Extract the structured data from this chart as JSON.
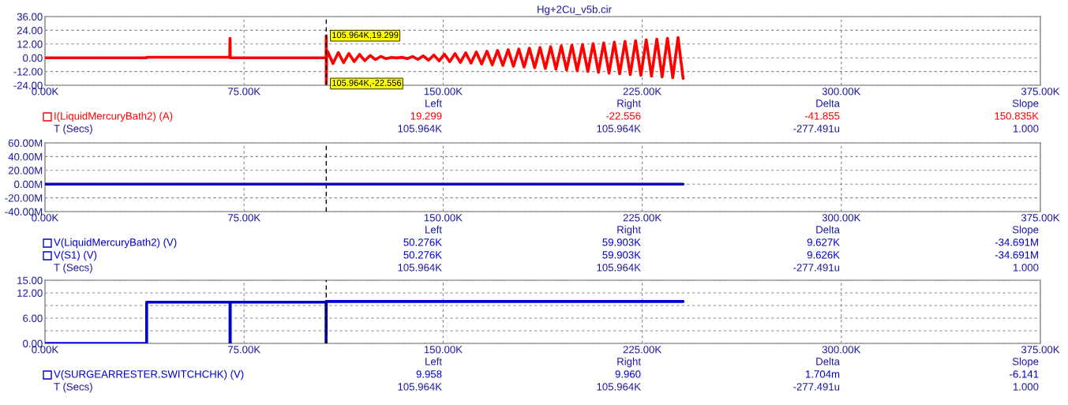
{
  "chart_data": [
    {
      "type": "line",
      "title": "Hg+2Cu_v5b.cir",
      "grid": true,
      "legend": "bottom left",
      "xlim": [
        0,
        375000
      ],
      "xticks": [
        {
          "value": 0,
          "label": "0.00K"
        },
        {
          "value": 75000,
          "label": "75.00K"
        },
        {
          "value": 150000,
          "label": "150.00K"
        },
        {
          "value": 225000,
          "label": "225.00K"
        },
        {
          "value": 300000,
          "label": "300.00K"
        },
        {
          "value": 375000,
          "label": "375.00K"
        }
      ],
      "ylim": [
        -24,
        36
      ],
      "yticks": [
        {
          "value": -24,
          "label": "-24.00"
        },
        {
          "value": -12,
          "label": "-12.00"
        },
        {
          "value": 0,
          "label": "0.00"
        },
        {
          "value": 12,
          "label": "12.00"
        },
        {
          "value": 24,
          "label": "24.00"
        },
        {
          "value": 36,
          "label": "36.00"
        }
      ],
      "ref_lines": [
        {
          "axis": "x",
          "value": 105964,
          "color": "#000000",
          "line_style": "dashed"
        }
      ],
      "series": [
        {
          "name": "I(LiquidMercuryBath2) (A)",
          "color": "#ff0000",
          "x": [
            0,
            38300,
            38300,
            69600,
            69700,
            69800,
            105900,
            105964,
            105964,
            106100,
            106500,
            108500,
            110500,
            112500,
            114500,
            116500,
            118500,
            120500,
            122500,
            124500,
            126500,
            128500,
            130500,
            132500,
            134500,
            136500,
            138500,
            140500,
            142500,
            144500,
            146500,
            148500,
            150500,
            152500,
            154500,
            156500,
            158500,
            160500,
            162500,
            164500,
            166500,
            168500,
            170500,
            172500,
            174500,
            176500,
            178500,
            180500,
            182500,
            184500,
            186500,
            188500,
            190500,
            192500,
            194500,
            196500,
            198500,
            200500,
            202500,
            204500,
            206500,
            208500,
            210500,
            212500,
            214500,
            216500,
            218500,
            220500,
            222500,
            224500,
            226500,
            228500,
            230500,
            232500,
            234500,
            236500,
            238500,
            240400
          ],
          "values": [
            0,
            0,
            0.5,
            0.5,
            17,
            0,
            0,
            19.299,
            -22.556,
            0,
            5.5,
            -5.1,
            4.6,
            -4.2,
            3.8,
            -3.3,
            2.9,
            -2.5,
            2.0,
            -1.6,
            1.2,
            -0.8,
            0.3,
            -0.1,
            0.4,
            -0.7,
            1.1,
            -1.4,
            1.7,
            -2.1,
            2.4,
            -2.7,
            3.1,
            -3.4,
            3.7,
            -4.1,
            4.4,
            -4.7,
            5.1,
            -5.4,
            5.7,
            -6.1,
            6.4,
            -6.7,
            7.1,
            -7.4,
            7.7,
            -8.1,
            8.4,
            -8.7,
            9.0,
            -9.4,
            9.7,
            -10.0,
            10.4,
            -10.7,
            11.0,
            -11.4,
            11.7,
            -12.0,
            12.4,
            -12.7,
            13.0,
            -13.4,
            13.7,
            -14.0,
            14.4,
            -14.7,
            15.0,
            -15.4,
            15.7,
            -16.0,
            16.4,
            -16.7,
            17.0,
            -17.4,
            17.7,
            -18.0
          ]
        }
      ],
      "annotations": [
        {
          "text": "105.964K,19.299",
          "x": 105964,
          "y": 19.299
        },
        {
          "text": "105.964K,-22.556",
          "x": 105964,
          "y": -22.556
        },
        "Left",
        "Right",
        "Delta",
        "Slope",
        "19.299",
        "-22.556",
        "-41.855",
        "150.835K",
        "T (Secs)",
        "105.964K",
        "105.964K",
        "-277.491u",
        "1.000"
      ]
    },
    {
      "type": "line",
      "grid": true,
      "legend": "bottom left",
      "xlim": [
        0,
        375000
      ],
      "xticks": [
        {
          "value": 0,
          "label": "0.00K"
        },
        {
          "value": 75000,
          "label": "75.00K"
        },
        {
          "value": 150000,
          "label": "150.00K"
        },
        {
          "value": 225000,
          "label": "225.00K"
        },
        {
          "value": 300000,
          "label": "300.00K"
        },
        {
          "value": 375000,
          "label": "375.00K"
        }
      ],
      "ylim": [
        -40000000,
        60000000
      ],
      "yticks": [
        {
          "value": -40000000,
          "label": "-40.00M"
        },
        {
          "value": -20000000,
          "label": "-20.00M"
        },
        {
          "value": 0,
          "label": "0.00M"
        },
        {
          "value": 20000000,
          "label": "20.00M"
        },
        {
          "value": 40000000,
          "label": "40.00M"
        },
        {
          "value": 60000000,
          "label": "60.00M"
        }
      ],
      "ref_lines": [
        {
          "axis": "x",
          "value": 105964,
          "color": "#000000",
          "line_style": "dashed"
        }
      ],
      "series": [
        {
          "name": "V(LiquidMercuryBath2) (V)",
          "color": "#0000cc",
          "x": [
            0,
            240400
          ],
          "values": [
            0,
            0
          ]
        },
        {
          "name": "V(S1) (V)",
          "color": "#0000cc",
          "values": [
            null,
            null
          ]
        }
      ],
      "annotations": [
        "Left",
        "Right",
        "Delta",
        "Slope",
        "50.276K",
        "59.903K",
        "9.627K",
        "-34.691M",
        "50.276K",
        "59.903K",
        "9.626K",
        "-34.691M",
        "T (Secs)",
        "105.964K",
        "105.964K",
        "-277.491u",
        "1.000"
      ]
    },
    {
      "type": "line",
      "grid": true,
      "legend": "bottom left",
      "xlim": [
        0,
        375000
      ],
      "xticks": [
        {
          "value": 0,
          "label": "0.00K"
        },
        {
          "value": 75000,
          "label": "75.00K"
        },
        {
          "value": 150000,
          "label": "150.00K"
        },
        {
          "value": 225000,
          "label": "225.00K"
        },
        {
          "value": 300000,
          "label": "300.00K"
        },
        {
          "value": 375000,
          "label": "375.00K"
        }
      ],
      "ylim": [
        0,
        15
      ],
      "yticks": [
        {
          "value": 0,
          "label": "0.00"
        },
        {
          "value": 3,
          "label": null
        },
        {
          "value": 6,
          "label": "6.00"
        },
        {
          "value": 9,
          "label": null
        },
        {
          "value": 12,
          "label": "12.00"
        },
        {
          "value": 15,
          "label": "15.00"
        }
      ],
      "ref_lines": [
        {
          "axis": "x",
          "value": 105964,
          "color": "#000000",
          "line_style": "dashed"
        }
      ],
      "series": [
        {
          "name": "V(SURGEARRESTER.SWITCHCHK) (V)",
          "color": "#0000cc",
          "x": [
            0,
            38300,
            38300,
            69700,
            69700,
            69800,
            69800,
            105900,
            105900,
            105964,
            240400
          ],
          "values": [
            0,
            0,
            9.8,
            9.8,
            0,
            0,
            9.8,
            9.8,
            0,
            9.958,
            9.96
          ]
        }
      ],
      "annotations": [
        "Left",
        "Right",
        "Delta",
        "Slope",
        "9.958",
        "9.960",
        "1.704m",
        "-6.141",
        "T (Secs)",
        "105.964K",
        "105.964K",
        "-277.491u",
        "1.000"
      ]
    }
  ]
}
